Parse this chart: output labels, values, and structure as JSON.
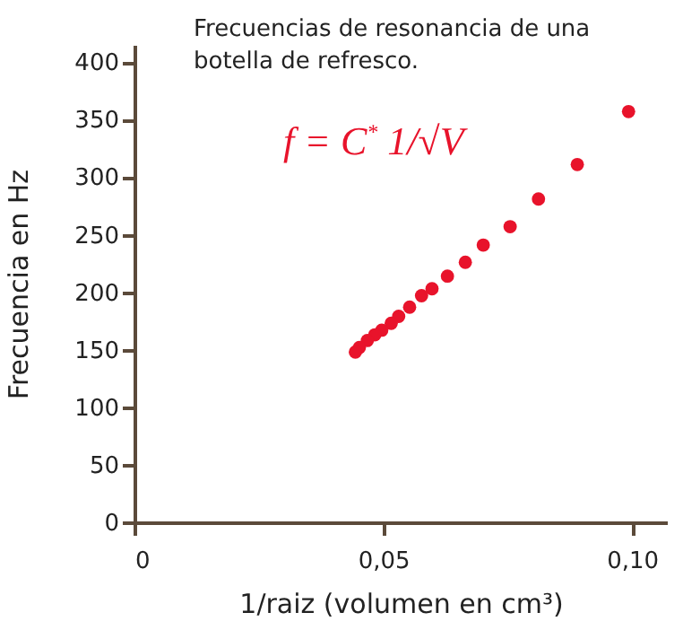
{
  "chart_data": {
    "type": "scatter",
    "title": "Frecuencias de resonancia de una botella de refresco.",
    "xlabel": "1/raiz  (volumen en cm³)",
    "ylabel": "Frecuencia en Hz",
    "annotations": [
      "f = C$^{*}$ 1/√V"
    ],
    "x": [
      0.0993,
      0.089,
      0.0812,
      0.0755,
      0.0701,
      0.0665,
      0.0629,
      0.0598,
      0.0577,
      0.0553,
      0.0531,
      0.0516,
      0.0497,
      0.0483,
      0.0468,
      0.0452,
      0.0444
    ],
    "series": [
      {
        "color": "#e8132b",
        "values": [
          357,
          311,
          281,
          257,
          241,
          226,
          214,
          203,
          197,
          187,
          179,
          173,
          167,
          163,
          158,
          152,
          148
        ]
      }
    ],
    "xlim": [
      0,
      0.107
    ],
    "xticks": [
      {
        "value": 0,
        "label": "0"
      },
      {
        "value": 0.05,
        "label": "0,05"
      },
      {
        "value": 0.1,
        "label": "0,10"
      }
    ],
    "ylim": [
      0,
      415
    ],
    "yticks": [
      0,
      50,
      100,
      150,
      200,
      250,
      300,
      350,
      400
    ],
    "grid": false,
    "marker": "circle"
  }
}
